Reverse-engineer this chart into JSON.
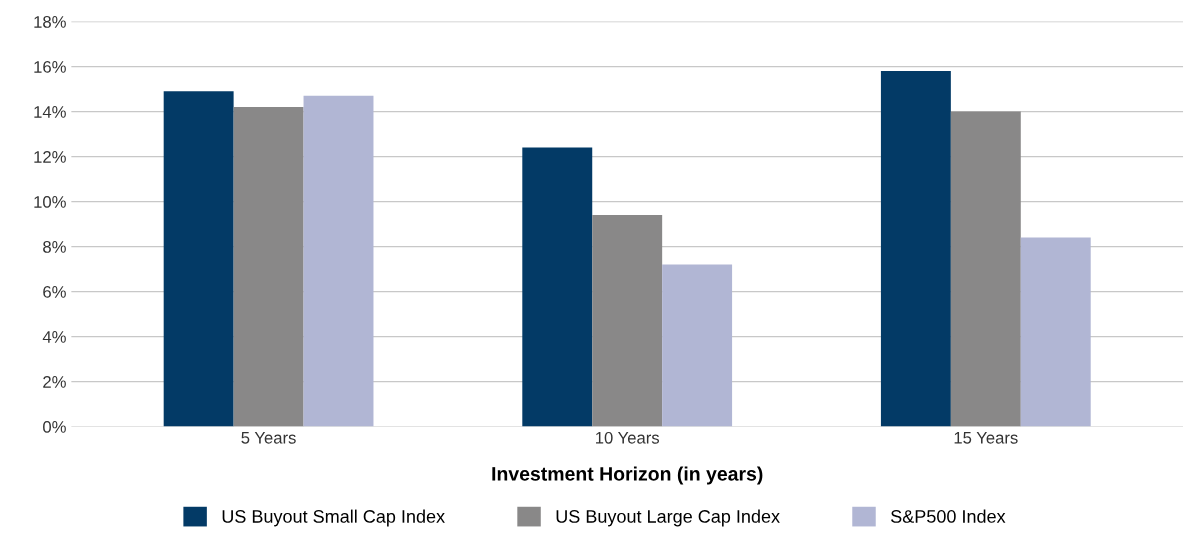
{
  "chart_data": {
    "type": "bar",
    "xlabel": "Investment Horizon (in years)",
    "categories": [
      "5 Years",
      "10 Years",
      "15 Years"
    ],
    "series": [
      {
        "name": "US Buyout Small Cap Index",
        "color": "#033a66",
        "values": [
          14.9,
          12.4,
          15.8
        ]
      },
      {
        "name": "US Buyout Large Cap Index",
        "color": "#898888",
        "values": [
          14.2,
          9.4,
          14.0
        ]
      },
      {
        "name": "S&P500 Index",
        "color": "#b1b6d4",
        "values": [
          14.7,
          7.2,
          8.4
        ]
      }
    ],
    "ylim": [
      0,
      18
    ],
    "yticks": [
      {
        "value": 0,
        "label": "0%"
      },
      {
        "value": 2,
        "label": "2%"
      },
      {
        "value": 4,
        "label": "4%"
      },
      {
        "value": 6,
        "label": "6%"
      },
      {
        "value": 8,
        "label": "8%"
      },
      {
        "value": 10,
        "label": "10%"
      },
      {
        "value": 12,
        "label": "12%"
      },
      {
        "value": 14,
        "label": "14%"
      },
      {
        "value": 16,
        "label": "16%"
      },
      {
        "value": 18,
        "label": "18%"
      }
    ],
    "grid": "y",
    "legend": "bottom"
  }
}
